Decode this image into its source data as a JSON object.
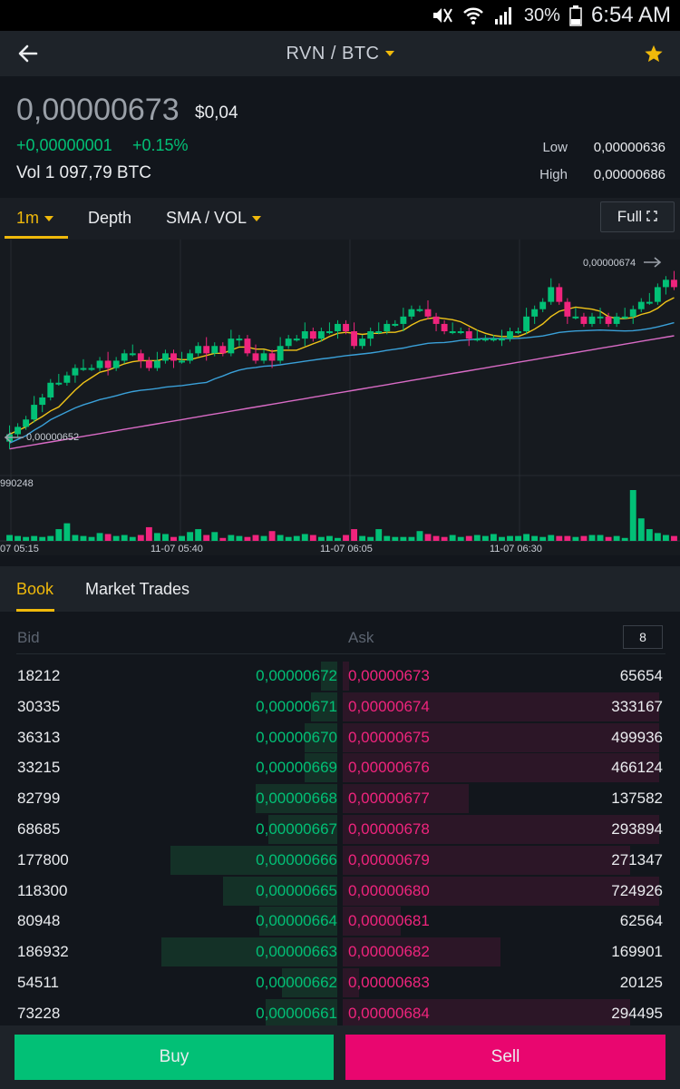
{
  "status_bar": {
    "battery": "30%",
    "time": "6:54 AM"
  },
  "header": {
    "pair": "RVN / BTC"
  },
  "ticker": {
    "last_price": "0,00000673",
    "usd": "$0,04",
    "change": "+0,00000001",
    "change_pct": "+0.15%",
    "volume": "Vol 1 097,79 BTC",
    "low_label": "Low",
    "low_value": "0,00000636",
    "high_label": "High",
    "high_value": "0,00000686"
  },
  "chart_tabs": {
    "interval": "1m",
    "depth": "Depth",
    "indicators": "SMA / VOL",
    "full": "Full"
  },
  "chart_data": {
    "type": "candlestick",
    "price_high_label": "0,00000674",
    "price_low_label": "0,00000652",
    "volume_label": "990248",
    "time_labels": [
      "07 05:15",
      "11-07 05:40",
      "11-07 06:05",
      "11-07 06:30"
    ],
    "closes": [
      653,
      654,
      655,
      657,
      658,
      660,
      660,
      661,
      662,
      662,
      662,
      663,
      662,
      663,
      664,
      664,
      663,
      662,
      663,
      664,
      663,
      663,
      664,
      665,
      664,
      665,
      664,
      666,
      666,
      664,
      663,
      664,
      663,
      665,
      666,
      666,
      667,
      666,
      667,
      667,
      668,
      667,
      665,
      666,
      667,
      667,
      668,
      668,
      669,
      670,
      670,
      669,
      668,
      667,
      667,
      667,
      666,
      666,
      666,
      666,
      666,
      667,
      667,
      669,
      670,
      671,
      673,
      671,
      669,
      669,
      668,
      669,
      669,
      668,
      669,
      669,
      670,
      671,
      671,
      673,
      674,
      673
    ],
    "volumes": [
      6,
      5,
      4,
      5,
      4,
      5,
      12,
      18,
      6,
      5,
      4,
      8,
      7,
      5,
      6,
      4,
      6,
      14,
      8,
      7,
      4,
      5,
      9,
      12,
      6,
      9,
      3,
      6,
      5,
      4,
      6,
      5,
      10,
      6,
      4,
      5,
      7,
      6,
      4,
      5,
      3,
      6,
      12,
      5,
      4,
      12,
      5,
      4,
      4,
      4,
      10,
      7,
      5,
      4,
      6,
      4,
      5,
      6,
      5,
      7,
      4,
      5,
      5,
      7,
      5,
      4,
      6,
      5,
      5,
      4,
      5,
      6,
      6,
      4,
      5,
      3,
      52,
      23,
      12,
      8,
      6,
      5
    ]
  },
  "book_tabs": {
    "book": "Book",
    "trades": "Market Trades"
  },
  "book": {
    "bid_header": "Bid",
    "ask_header": "Ask",
    "depth": "8",
    "rows": [
      {
        "bid_qty": "18212",
        "bid_price": "0,00000672",
        "ask_price": "0,00000673",
        "ask_qty": "65654",
        "bid_depth": 0.05,
        "ask_depth": 0.02
      },
      {
        "bid_qty": "30335",
        "bid_price": "0,00000671",
        "ask_price": "0,00000674",
        "ask_qty": "333167",
        "bid_depth": 0.08,
        "ask_depth": 0.98
      },
      {
        "bid_qty": "36313",
        "bid_price": "0,00000670",
        "ask_price": "0,00000675",
        "ask_qty": "499936",
        "bid_depth": 0.1,
        "ask_depth": 0.98
      },
      {
        "bid_qty": "33215",
        "bid_price": "0,00000669",
        "ask_price": "0,00000676",
        "ask_qty": "466124",
        "bid_depth": 0.1,
        "ask_depth": 0.98
      },
      {
        "bid_qty": "82799",
        "bid_price": "0,00000668",
        "ask_price": "0,00000677",
        "ask_qty": "137582",
        "bid_depth": 0.25,
        "ask_depth": 0.39
      },
      {
        "bid_qty": "68685",
        "bid_price": "0,00000667",
        "ask_price": "0,00000678",
        "ask_qty": "293894",
        "bid_depth": 0.21,
        "ask_depth": 0.98
      },
      {
        "bid_qty": "177800",
        "bid_price": "0,00000666",
        "ask_price": "0,00000679",
        "ask_qty": "271347",
        "bid_depth": 0.51,
        "ask_depth": 0.89
      },
      {
        "bid_qty": "118300",
        "bid_price": "0,00000665",
        "ask_price": "0,00000680",
        "ask_qty": "724926",
        "bid_depth": 0.35,
        "ask_depth": 0.98
      },
      {
        "bid_qty": "80948",
        "bid_price": "0,00000664",
        "ask_price": "0,00000681",
        "ask_qty": "62564",
        "bid_depth": 0.24,
        "ask_depth": 0.18
      },
      {
        "bid_qty": "186932",
        "bid_price": "0,00000663",
        "ask_price": "0,00000682",
        "ask_qty": "169901",
        "bid_depth": 0.54,
        "ask_depth": 0.49
      },
      {
        "bid_qty": "54511",
        "bid_price": "0,00000662",
        "ask_price": "0,00000683",
        "ask_qty": "20125",
        "bid_depth": 0.17,
        "ask_depth": 0.05
      },
      {
        "bid_qty": "73228",
        "bid_price": "0,00000661",
        "ask_price": "0,00000684",
        "ask_qty": "294495",
        "bid_depth": 0.22,
        "ask_depth": 0.89
      }
    ]
  },
  "footer": {
    "buy": "Buy",
    "sell": "Sell"
  },
  "colors": {
    "up": "#02c076",
    "down": "#f0247d",
    "accent": "#f0b90b",
    "buy": "#02c076",
    "sell": "#e9066f"
  },
  "icons": {
    "back": "arrow-left-icon",
    "star": "star-icon",
    "fullscreen": "expand-icon"
  }
}
